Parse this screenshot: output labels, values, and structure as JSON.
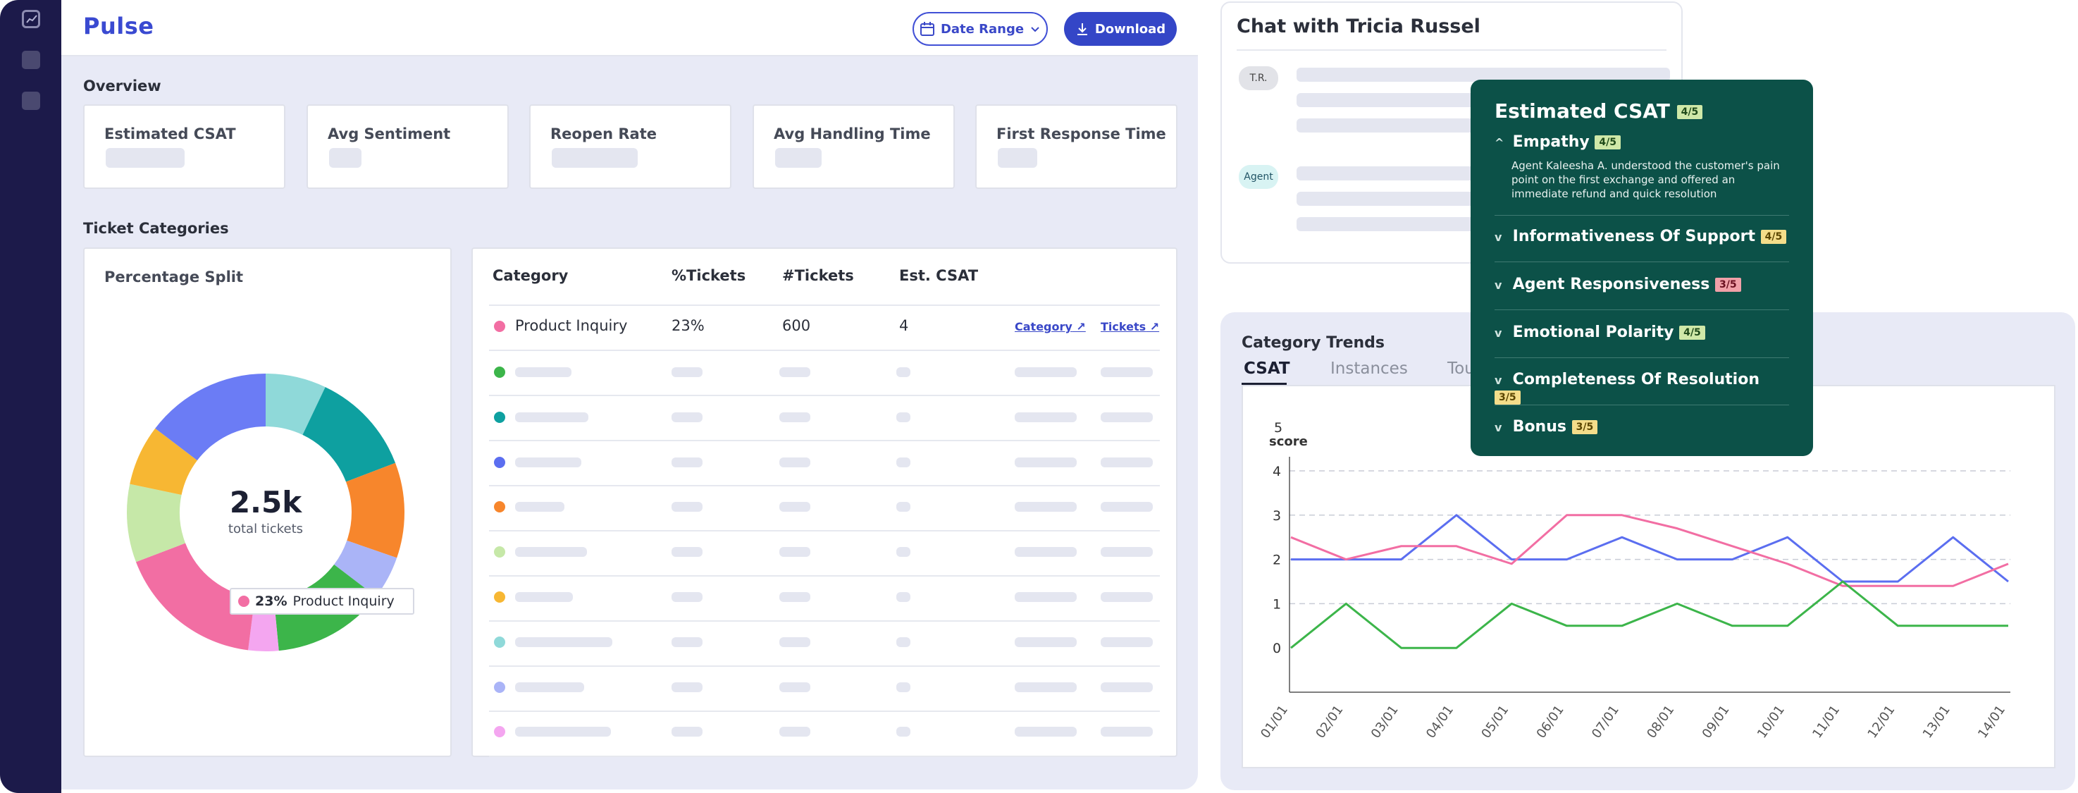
{
  "app": {
    "title": "Pulse"
  },
  "toolbar": {
    "date_range_label": "Date Range",
    "download_label": "Download"
  },
  "overview": {
    "title": "Overview",
    "metrics": [
      {
        "label": "Estimated CSAT"
      },
      {
        "label": "Avg Sentiment"
      },
      {
        "label": "Reopen Rate"
      },
      {
        "label": "Avg Handling Time"
      },
      {
        "label": "First Response Time"
      }
    ]
  },
  "ticket_categories": {
    "title": "Ticket Categories",
    "split_title": "Percentage Split",
    "total_value": "2.5k",
    "total_label": "total tickets",
    "tooltip": {
      "percent": "23%",
      "label": "Product Inquiry"
    },
    "table": {
      "headers": [
        "Category",
        "%Tickets",
        "#Tickets",
        "Est. CSAT"
      ],
      "first_row": {
        "category": "Product Inquiry",
        "percent": "23%",
        "count": "600",
        "csat": "4",
        "link_category": "Category",
        "link_tickets": "Tickets"
      },
      "row_colors": [
        "#f26ea3",
        "#3cb54a",
        "#0ea0a0",
        "#5b6ef0",
        "#f7862c",
        "#c6e8a8",
        "#f7b733",
        "#8fd9d9",
        "#aab4f7",
        "#f4a6f0"
      ]
    }
  },
  "chat": {
    "title": "Chat with Tricia Russel",
    "participants": [
      "T.R.",
      "Agent"
    ]
  },
  "category_trends": {
    "title": "Category Trends",
    "tabs": [
      "CSAT",
      "Instances",
      "Tou"
    ],
    "active_tab": "CSAT"
  },
  "csat_panel": {
    "title": "Estimated CSAT",
    "score": "4/5",
    "items": [
      {
        "label": "Empathy",
        "score": "4/5",
        "expanded": true,
        "description": "Agent Kaleesha A. understood the customer's pain point on the first exchange and offered an immediate refund and quick resolution"
      },
      {
        "label": "Informativeness Of Support",
        "score": "4/5"
      },
      {
        "label": "Agent Responsiveness",
        "score": "3/5"
      },
      {
        "label": "Emotional Polarity",
        "score": "4/5"
      },
      {
        "label": "Completeness Of Resolution",
        "score": "3/5"
      },
      {
        "label": "Bonus",
        "score": "3/5"
      }
    ]
  },
  "colors": {
    "accent": "#3a48c8",
    "sidebar": "#1c1a4a",
    "panel": "#0c5148"
  },
  "chart_data": {
    "type": "line",
    "ylabel_top": "5",
    "ylabel": "score",
    "yticks": [
      "4",
      "3",
      "2",
      "1",
      "0"
    ],
    "x": [
      "01/01",
      "02/01",
      "03/01",
      "04/01",
      "05/01",
      "06/01",
      "07/01",
      "08/01",
      "09/01",
      "10/01",
      "11/01",
      "12/01",
      "13/01",
      "14/01"
    ],
    "ylim": [
      -1,
      4
    ],
    "grid": true,
    "series": [
      {
        "color": "#5b6ef0",
        "values": [
          2,
          2,
          2,
          3,
          2,
          2,
          2.5,
          2,
          2,
          2.5,
          1.5,
          1.5,
          2.5,
          1.5
        ]
      },
      {
        "color": "#f26ea3",
        "values": [
          2.5,
          2,
          2.3,
          2.3,
          1.9,
          3,
          3,
          2.7,
          2.3,
          1.9,
          1.4,
          1.4,
          1.4,
          1.9
        ]
      },
      {
        "color": "#3cb54a",
        "values": [
          0,
          1,
          0,
          0,
          1,
          0.5,
          0.5,
          1,
          0.5,
          0.5,
          1.5,
          0.5,
          0.5,
          0.5
        ]
      }
    ]
  }
}
